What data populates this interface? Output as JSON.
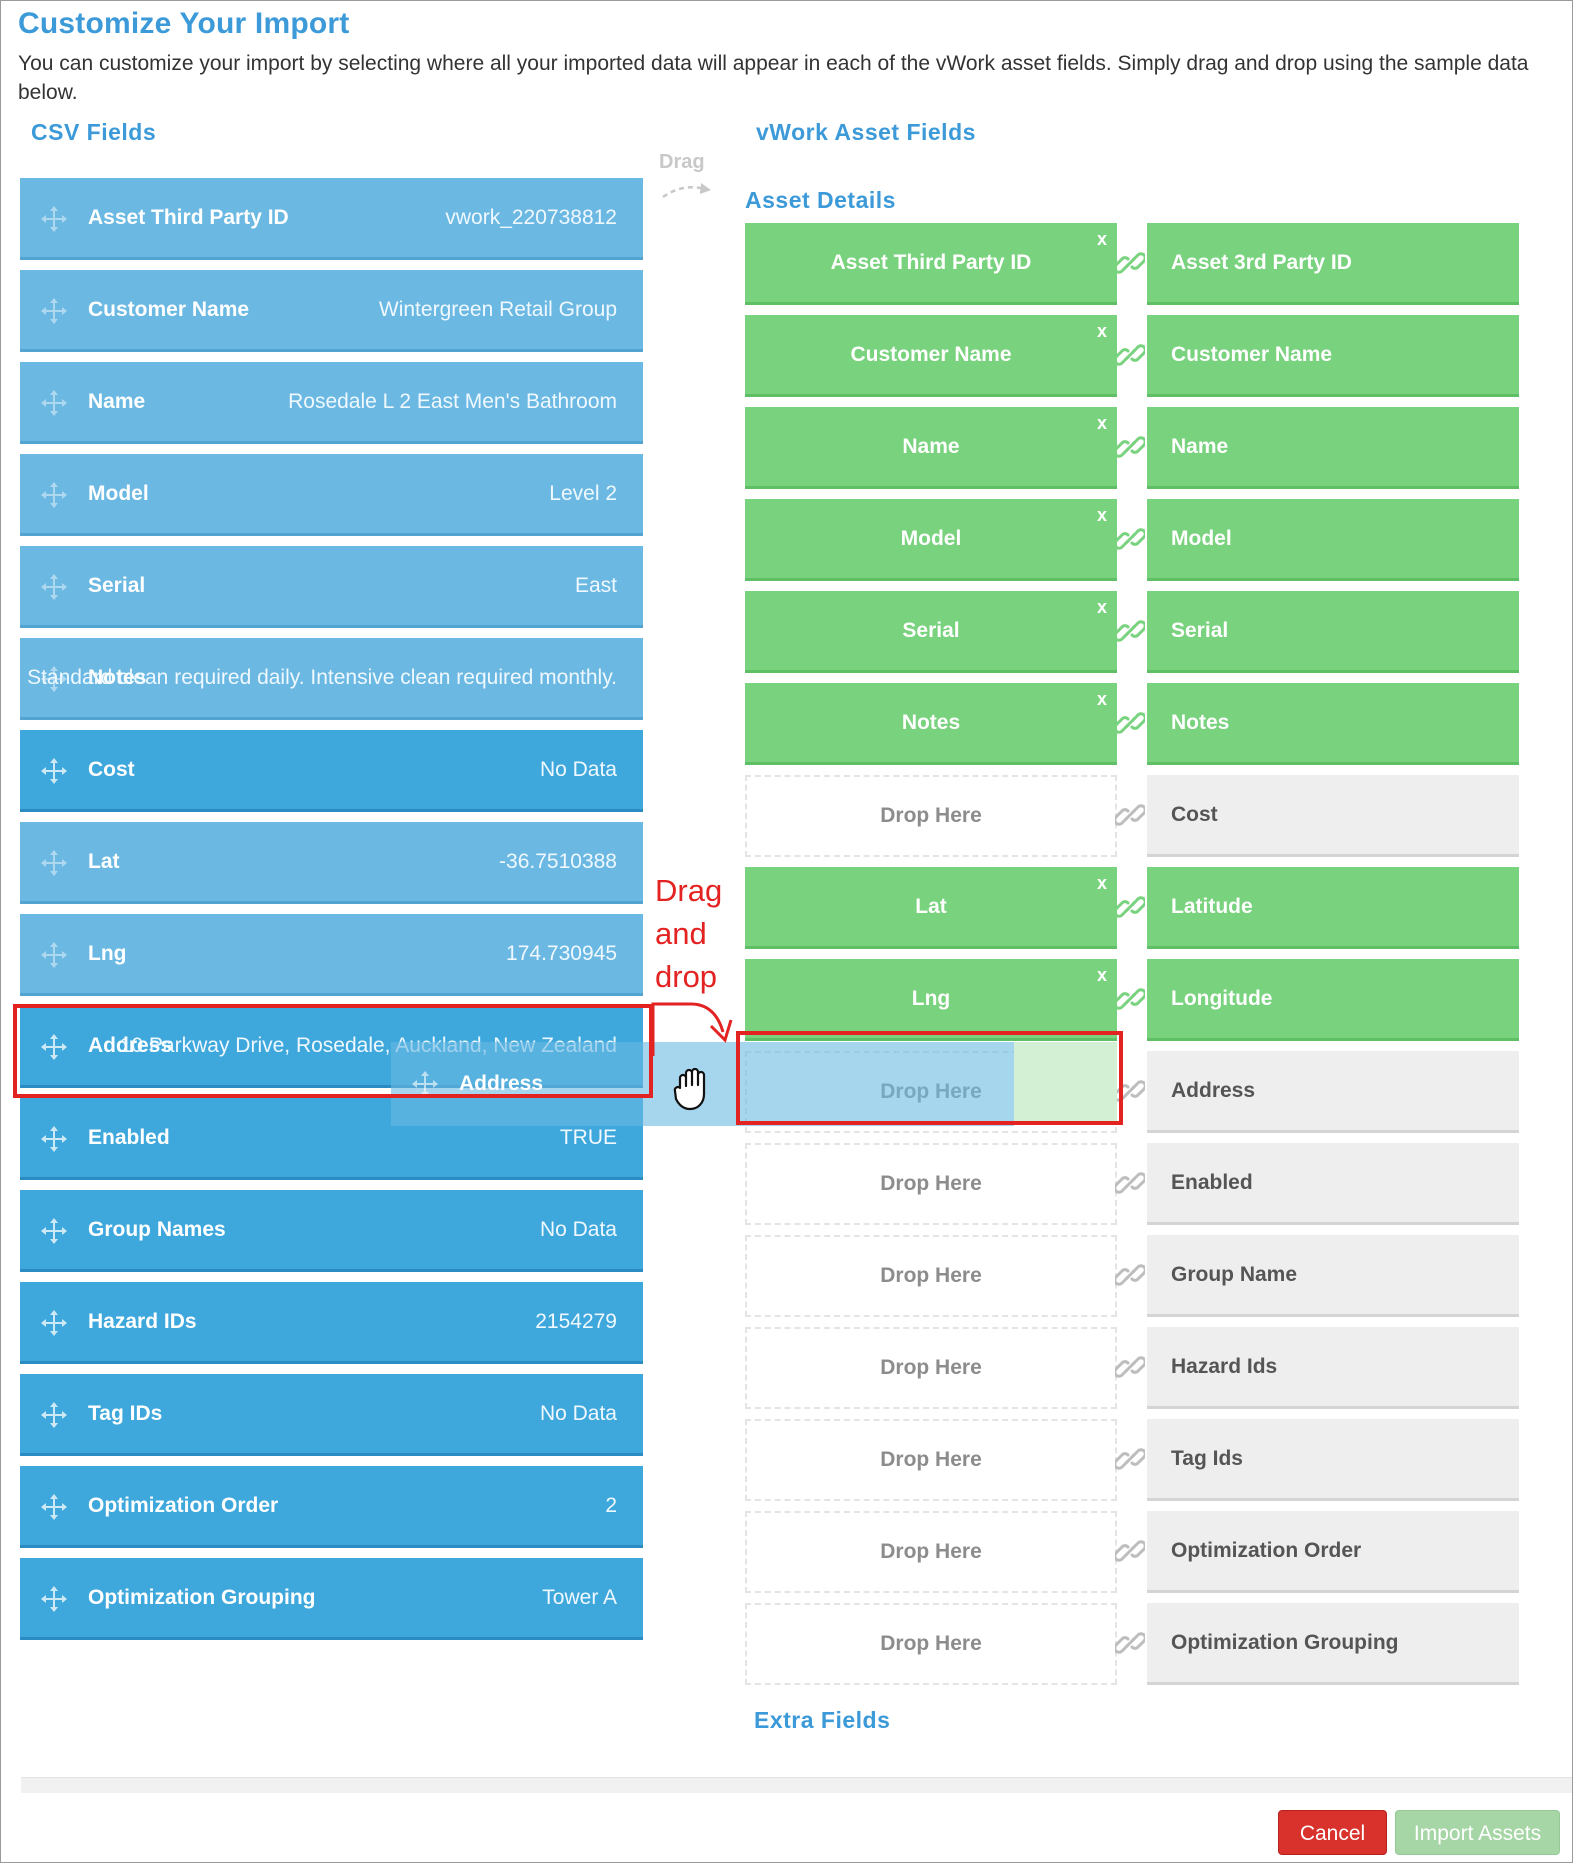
{
  "header": {
    "title": "Customize Your Import",
    "intro": "You can customize your import by selecting where all your imported data will appear in each of the vWork asset fields. Simply drag and drop using the sample data below."
  },
  "columns": {
    "csv_title": "CSV Fields",
    "vwork_title": "vWork Asset Fields",
    "asset_details": "Asset Details",
    "drag_hint": "Drag",
    "extra_fields": "Extra Fields"
  },
  "csv_fields": [
    {
      "label": "Asset Third Party ID",
      "value": "vwork_220738812",
      "state": "used"
    },
    {
      "label": "Customer Name",
      "value": "Wintergreen Retail Group",
      "state": "used"
    },
    {
      "label": "Name",
      "value": "Rosedale L 2 East Men's Bathroom",
      "state": "used"
    },
    {
      "label": "Model",
      "value": "Level 2",
      "state": "used"
    },
    {
      "label": "Serial",
      "value": "East",
      "state": "used"
    },
    {
      "label": "Notes",
      "value": "Standard clean required daily. Intensive clean required monthly.",
      "state": "used"
    },
    {
      "label": "Cost",
      "value": "No Data",
      "state": "free"
    },
    {
      "label": "Lat",
      "value": "-36.7510388",
      "state": "used"
    },
    {
      "label": "Lng",
      "value": "174.730945",
      "state": "used"
    },
    {
      "label": "Address",
      "value": "10 Parkway Drive, Rosedale, Auckland, New Zealand",
      "state": "free"
    },
    {
      "label": "Enabled",
      "value": "TRUE",
      "state": "free"
    },
    {
      "label": "Group Names",
      "value": "No Data",
      "state": "free"
    },
    {
      "label": "Hazard IDs",
      "value": "2154279",
      "state": "free"
    },
    {
      "label": "Tag IDs",
      "value": "No Data",
      "state": "free"
    },
    {
      "label": "Optimization Order",
      "value": "2",
      "state": "free"
    },
    {
      "label": "Optimization Grouping",
      "value": "Tower A",
      "state": "free"
    }
  ],
  "mappings": [
    {
      "target": "Asset Third Party ID",
      "asset": "Asset 3rd Party ID",
      "filled": true
    },
    {
      "target": "Customer Name",
      "asset": "Customer Name",
      "filled": true
    },
    {
      "target": "Name",
      "asset": "Name",
      "filled": true
    },
    {
      "target": "Model",
      "asset": "Model",
      "filled": true
    },
    {
      "target": "Serial",
      "asset": "Serial",
      "filled": true
    },
    {
      "target": "Notes",
      "asset": "Notes",
      "filled": true
    },
    {
      "target": "Drop Here",
      "asset": "Cost",
      "filled": false
    },
    {
      "target": "Lat",
      "asset": "Latitude",
      "filled": true
    },
    {
      "target": "Lng",
      "asset": "Longitude",
      "filled": true
    },
    {
      "target": "Drop Here",
      "asset": "Address",
      "filled": false
    },
    {
      "target": "Drop Here",
      "asset": "Enabled",
      "filled": false
    },
    {
      "target": "Drop Here",
      "asset": "Group Name",
      "filled": false
    },
    {
      "target": "Drop Here",
      "asset": "Hazard Ids",
      "filled": false
    },
    {
      "target": "Drop Here",
      "asset": "Tag Ids",
      "filled": false
    },
    {
      "target": "Drop Here",
      "asset": "Optimization Order",
      "filled": false
    },
    {
      "target": "Drop Here",
      "asset": "Optimization Grouping",
      "filled": false
    }
  ],
  "remove_glyph": "x",
  "drag_ghost": {
    "label": "Address"
  },
  "annotation": {
    "line1": "Drag",
    "line2": "and",
    "line3": "drop",
    "color": "#e32222"
  },
  "footer": {
    "cancel": "Cancel",
    "import": "Import Assets"
  },
  "colors": {
    "accent": "#3c9ad8",
    "csv_used": "#6bb9e2",
    "csv_free": "#3ea8dd",
    "mapped_green": "#79d27d",
    "unmapped_grey": "#eeeeee",
    "cancel": "#d9312c",
    "import": "#a6d6a6"
  }
}
